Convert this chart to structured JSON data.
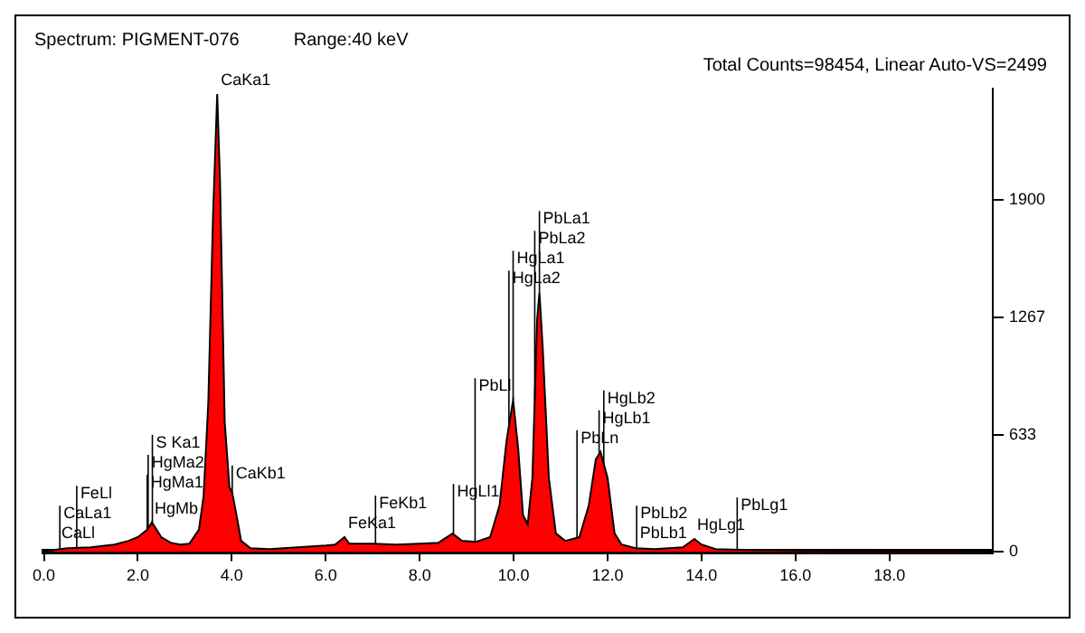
{
  "chart_data": {
    "type": "area",
    "title": "Spectrum: PIGMENT-076",
    "subtitle": "Range:40  keV",
    "x": [
      0.2,
      0.5,
      1.0,
      1.5,
      1.8,
      2.0,
      2.2,
      2.3,
      2.4,
      2.5,
      2.7,
      2.9,
      3.1,
      3.3,
      3.4,
      3.5,
      3.6,
      3.69,
      3.75,
      3.85,
      3.95,
      4.01,
      4.1,
      4.2,
      4.4,
      4.8,
      5.4,
      6.0,
      6.2,
      6.4,
      6.5,
      7.0,
      7.5,
      8.0,
      8.4,
      8.7,
      8.9,
      9.2,
      9.5,
      9.7,
      9.85,
      9.99,
      10.1,
      10.2,
      10.3,
      10.4,
      10.5,
      10.55,
      10.62,
      10.75,
      10.9,
      11.1,
      11.4,
      11.6,
      11.75,
      11.85,
      12.0,
      12.15,
      12.3,
      12.6,
      13.0,
      13.6,
      13.85,
      14.0,
      14.3,
      15,
      16,
      17,
      18,
      19,
      20
    ],
    "series": [
      {
        "color": "#ff0000",
        "values": [
          10,
          20,
          25,
          40,
          60,
          80,
          120,
          160,
          120,
          80,
          50,
          40,
          45,
          120,
          300,
          800,
          1800,
          2470,
          2000,
          700,
          350,
          320,
          200,
          60,
          20,
          15,
          25,
          35,
          40,
          80,
          45,
          45,
          40,
          45,
          50,
          100,
          60,
          55,
          80,
          250,
          600,
          820,
          550,
          200,
          150,
          400,
          1250,
          1400,
          1100,
          400,
          100,
          60,
          80,
          250,
          500,
          540,
          400,
          100,
          40,
          20,
          15,
          25,
          70,
          40,
          15,
          10,
          8,
          6,
          5,
          4,
          3
        ]
      }
    ],
    "xlim": [
      0,
      20.2
    ],
    "xticks": [
      {
        "value": 0,
        "label": "0.0"
      },
      {
        "value": 2,
        "label": "2.0"
      },
      {
        "value": 4,
        "label": "4.0"
      },
      {
        "value": 6,
        "label": "6.0"
      },
      {
        "value": 8,
        "label": "8.0"
      },
      {
        "value": 10,
        "label": "10.0"
      },
      {
        "value": 12,
        "label": "12.0"
      },
      {
        "value": 14,
        "label": "14.0"
      },
      {
        "value": 16,
        "label": "16.0"
      },
      {
        "value": 18,
        "label": "18.0"
      }
    ],
    "ylim": [
      0,
      2499
    ],
    "yticks": [
      0,
      633,
      1267,
      1900
    ],
    "grid": false,
    "legend": false,
    "marker": "none",
    "annotations": [
      "Total Counts=98454, Linear  Auto-VS=2499",
      {
        "text": "CaLl",
        "x": 0.3,
        "y": 13
      },
      {
        "text": "CaLa1",
        "x": 0.34,
        "y": 15
      },
      {
        "text": "FeLl",
        "x": 0.7,
        "y": 22
      },
      {
        "text": "HgMa1",
        "x": 2.2,
        "y": 120
      },
      {
        "text": "HgMa2",
        "x": 2.22,
        "y": 128
      },
      {
        "text": "HgMb",
        "x": 2.28,
        "y": 152
      },
      {
        "text": "S Ka1",
        "x": 2.31,
        "y": 156
      },
      {
        "text": "CaKa1",
        "x": 3.69,
        "y": 2470
      },
      {
        "text": "CaKb1",
        "x": 4.01,
        "y": 320
      },
      {
        "text": "FeKa1",
        "x": 6.4,
        "y": 80
      },
      {
        "text": "FeKb1",
        "x": 7.06,
        "y": 45
      },
      {
        "text": "HgLl1",
        "x": 8.72,
        "y": 96
      },
      {
        "text": "PbLl",
        "x": 9.18,
        "y": 55
      },
      {
        "text": "HgLa2",
        "x": 9.9,
        "y": 679
      },
      {
        "text": "HgLa1",
        "x": 9.99,
        "y": 820
      },
      {
        "text": "PbLa2",
        "x": 10.45,
        "y": 825
      },
      {
        "text": "PbLa1",
        "x": 10.55,
        "y": 1400
      },
      {
        "text": "PbLn",
        "x": 11.35,
        "y": 77
      },
      {
        "text": "HgLb1",
        "x": 11.82,
        "y": 528
      },
      {
        "text": "HgLb2",
        "x": 11.92,
        "y": 475
      },
      {
        "text": "PbLb1",
        "x": 12.61,
        "y": 20
      },
      {
        "text": "PbLb2",
        "x": 12.62,
        "y": 20
      },
      {
        "text": "HgLg1",
        "x": 13.83,
        "y": 66
      },
      {
        "text": "PbLg1",
        "x": 14.76,
        "y": 12
      }
    ]
  }
}
